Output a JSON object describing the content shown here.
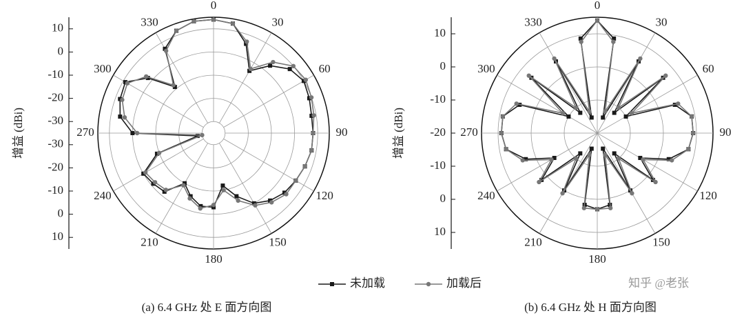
{
  "chart_data": [
    {
      "type": "polar",
      "caption": "(a) 6.4 GHz 处 E 面方向图",
      "ylabel": "增益 (dBi)",
      "ylim": [
        -35,
        15
      ],
      "yticks": [
        -30,
        -20,
        -10,
        0,
        10
      ],
      "xticks": [
        0,
        30,
        60,
        90,
        120,
        150,
        180,
        210,
        240,
        270,
        300,
        330
      ],
      "theta": [
        0,
        10,
        20,
        30,
        40,
        50,
        60,
        70,
        80,
        90,
        100,
        110,
        120,
        130,
        140,
        150,
        160,
        170,
        180,
        190,
        200,
        210,
        220,
        230,
        240,
        250,
        260,
        270,
        280,
        290,
        300,
        310,
        320,
        330,
        340,
        350
      ],
      "series": [
        {
          "name": "未加载",
          "color": "#1a1a1a",
          "marker": "square",
          "values": [
            14,
            13,
            6,
            -4,
            3,
            8,
            10,
            9,
            8,
            8,
            8,
            7,
            6,
            5,
            3,
            0,
            -6,
            -12,
            -3,
            -3,
            -6,
            -10,
            -2,
            -1,
            0,
            -9,
            -28,
            0,
            6,
            8,
            9,
            2,
            -9,
            7,
            12,
            14
          ]
        },
        {
          "name": "加载后",
          "color": "#777777",
          "marker": "circle",
          "values": [
            14,
            13,
            7,
            -3,
            5,
            10,
            11,
            10,
            9,
            8,
            8,
            7,
            6,
            6,
            4,
            1,
            -4,
            -10,
            -4,
            -2,
            -5,
            -9,
            -3,
            -2,
            -1,
            -10,
            -30,
            -2,
            4,
            7,
            8,
            3,
            -8,
            6,
            12,
            14
          ]
        }
      ]
    },
    {
      "type": "polar",
      "caption": "(b) 6.4 GHz 处 H 面方向图",
      "ylabel": "增益 (dBi)",
      "ylim": [
        -20,
        15
      ],
      "yticks": [
        -20,
        -10,
        0,
        10
      ],
      "xticks": [
        0,
        30,
        60,
        90,
        120,
        150,
        180,
        210,
        240,
        270,
        300,
        330
      ],
      "theta": [
        0,
        10,
        20,
        30,
        40,
        50,
        60,
        70,
        80,
        90,
        100,
        110,
        120,
        130,
        140,
        150,
        160,
        170,
        180,
        190,
        200,
        210,
        220,
        230,
        240,
        250,
        260,
        270,
        280,
        290,
        300,
        310,
        320,
        330,
        340,
        350
      ],
      "series": [
        {
          "color": "#1a1a1a",
          "marker": "square",
          "values": [
            14,
            9,
            -15,
            5,
            -12,
            6,
            -10,
            5,
            9,
            9,
            8,
            3,
            -5,
            2,
            -12,
            0,
            -15,
            2,
            3,
            2,
            -15,
            0,
            -12,
            2,
            -5,
            3,
            8,
            9,
            9,
            5,
            -10,
            6,
            -12,
            5,
            -15,
            9
          ]
        },
        {
          "color": "#777777",
          "marker": "circle",
          "values": [
            14,
            8,
            -13,
            6,
            -10,
            7,
            -8,
            6,
            9,
            9,
            8,
            4,
            -4,
            3,
            -10,
            1,
            -13,
            3,
            3,
            3,
            -13,
            1,
            -10,
            3,
            -4,
            4,
            8,
            9,
            9,
            6,
            -8,
            7,
            -10,
            6,
            -13,
            8
          ]
        }
      ]
    }
  ],
  "watermark": "知乎 @老张"
}
